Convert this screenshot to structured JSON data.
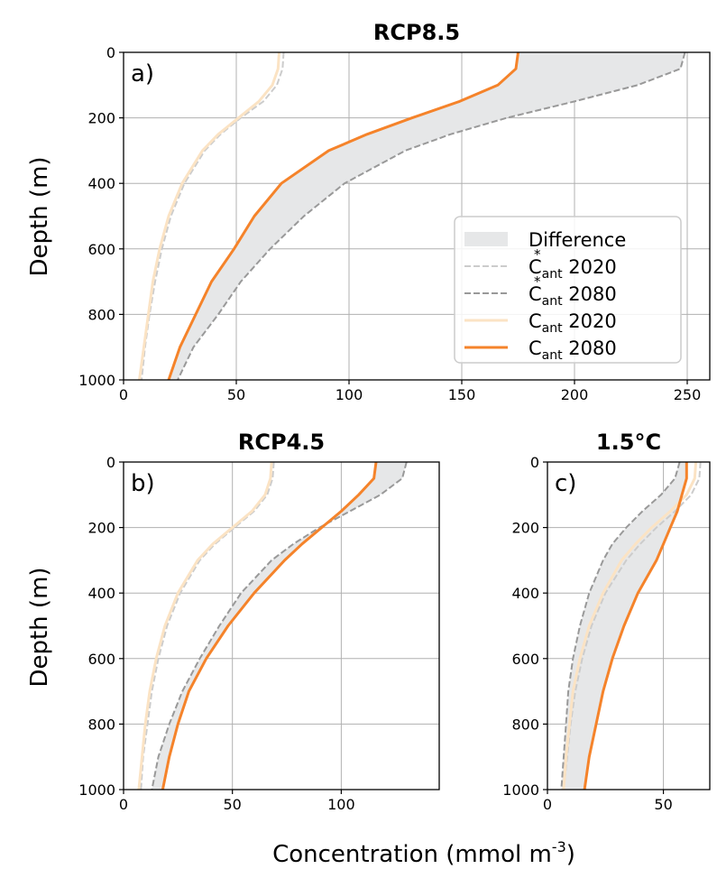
{
  "colors": {
    "fill_difference": "#e6e7e8",
    "cstar_2020": "#cccccc",
    "cstar_2080": "#999999",
    "cant_2020": "#fbe3c4",
    "cant_2080": "#f5832a",
    "grid": "#b0b0b0"
  },
  "legend": {
    "items": [
      {
        "key": "diff",
        "label": "Difference",
        "base": "",
        "sub": "",
        "year": ""
      },
      {
        "key": "cstar_2020",
        "label": "C*ant 2020",
        "base": "C",
        "star": true,
        "sub": "ant",
        "year": " 2020"
      },
      {
        "key": "cstar_2080",
        "label": "C*ant 2080",
        "base": "C",
        "star": true,
        "sub": "ant",
        "year": " 2080"
      },
      {
        "key": "cant_2020",
        "label": "Cant 2020",
        "base": "C",
        "star": false,
        "sub": "ant",
        "year": " 2020"
      },
      {
        "key": "cant_2080",
        "label": "Cant 2080",
        "base": "C",
        "star": false,
        "sub": "ant",
        "year": " 2080"
      }
    ],
    "placement": "lower-right of panel a"
  },
  "xlabel": "Concentration (mmol m",
  "xlabel_sup": "-3",
  "xlabel_end": ")",
  "ylabel": "Depth (m)",
  "chart_data": [
    {
      "type": "line",
      "panel_label": "a)",
      "title": "RCP8.5",
      "xlim": [
        0,
        260
      ],
      "ylim": [
        1000,
        0
      ],
      "xticks": [
        0,
        50,
        100,
        150,
        200,
        250
      ],
      "yticks": [
        0,
        200,
        400,
        600,
        800,
        1000
      ],
      "grid": true,
      "depth": [
        0,
        50,
        100,
        150,
        200,
        250,
        300,
        400,
        500,
        600,
        700,
        800,
        900,
        1000
      ],
      "series": [
        {
          "name": "C*ant 2020",
          "key": "cstar_2020",
          "style": "dashed",
          "values": [
            71,
            70.5,
            68,
            62,
            52,
            43,
            36,
            27,
            21,
            17,
            14,
            11.5,
            9.5,
            8
          ]
        },
        {
          "name": "C*ant 2080",
          "key": "cstar_2080",
          "style": "dashed",
          "values": [
            249,
            247,
            228,
            200,
            170,
            145,
            125,
            98,
            80,
            65,
            52,
            42,
            31,
            24
          ]
        },
        {
          "name": "Cant 2020",
          "key": "cant_2020",
          "style": "solid",
          "values": [
            69,
            68.5,
            66,
            60,
            51,
            42,
            35,
            26,
            20,
            16,
            13,
            11,
            9,
            7
          ]
        },
        {
          "name": "Cant 2080",
          "key": "cant_2080",
          "style": "solid",
          "values": [
            175,
            174,
            166,
            149,
            128,
            108,
            91,
            70,
            58,
            49,
            39,
            32,
            25,
            20
          ]
        }
      ],
      "difference_between": [
        "cant_2080",
        "cstar_2080"
      ]
    },
    {
      "type": "line",
      "panel_label": "b)",
      "title": "RCP4.5",
      "xlim": [
        0,
        145
      ],
      "ylim": [
        1000,
        0
      ],
      "xticks": [
        0,
        50,
        100
      ],
      "yticks": [
        0,
        200,
        400,
        600,
        800,
        1000
      ],
      "grid": true,
      "depth": [
        0,
        50,
        100,
        150,
        200,
        250,
        300,
        400,
        500,
        600,
        700,
        800,
        900,
        1000
      ],
      "series": [
        {
          "name": "C*ant 2020",
          "key": "cstar_2020",
          "style": "dashed",
          "values": [
            69,
            68.5,
            66,
            60,
            51,
            42,
            35,
            26,
            20,
            16,
            13,
            11,
            9,
            8
          ]
        },
        {
          "name": "C*ant 2080",
          "key": "cstar_2080",
          "style": "dashed",
          "values": [
            130,
            128,
            118,
            104,
            90,
            78,
            68,
            54,
            44,
            35,
            27,
            21,
            16,
            13
          ]
        },
        {
          "name": "Cant 2020",
          "key": "cant_2020",
          "style": "solid",
          "values": [
            68,
            67.5,
            65,
            59,
            50,
            41,
            34,
            25,
            19,
            15,
            12,
            10,
            8.5,
            7
          ]
        },
        {
          "name": "Cant 2080",
          "key": "cant_2080",
          "style": "solid",
          "values": [
            116,
            115,
            108,
            100,
            91,
            82,
            74,
            60,
            48,
            38,
            30,
            25,
            21,
            18
          ]
        }
      ],
      "difference_between": [
        "cant_2080",
        "cstar_2080"
      ]
    },
    {
      "type": "line",
      "panel_label": "c)",
      "title": "1.5°C",
      "xlim": [
        0,
        70
      ],
      "ylim": [
        1000,
        0
      ],
      "xticks": [
        0,
        50
      ],
      "yticks": [
        0,
        200,
        400,
        600,
        800,
        1000
      ],
      "grid": true,
      "depth": [
        0,
        50,
        100,
        150,
        200,
        250,
        300,
        400,
        500,
        600,
        700,
        800,
        900,
        1000
      ],
      "series": [
        {
          "name": "C*ant 2020",
          "key": "cstar_2020",
          "style": "dashed",
          "values": [
            66,
            65.5,
            62,
            55,
            47,
            40,
            34,
            25,
            19,
            15,
            12,
            10,
            8.5,
            7
          ]
        },
        {
          "name": "C*ant 2080",
          "key": "cstar_2080",
          "style": "dashed",
          "values": [
            57,
            55,
            49,
            41,
            34,
            28,
            24,
            18,
            14,
            11,
            9,
            8,
            7,
            6
          ]
        },
        {
          "name": "Cant 2020",
          "key": "cant_2020",
          "style": "solid",
          "values": [
            64,
            63.5,
            60,
            53,
            45,
            38,
            32,
            24,
            18,
            14,
            11,
            9.5,
            8,
            7
          ]
        },
        {
          "name": "Cant 2080",
          "key": "cant_2080",
          "style": "solid",
          "values": [
            60,
            60,
            58,
            56,
            53,
            50,
            47,
            39,
            33,
            28,
            24,
            21,
            18,
            16
          ]
        }
      ],
      "difference_between": [
        "cant_2080",
        "cstar_2080"
      ]
    }
  ]
}
